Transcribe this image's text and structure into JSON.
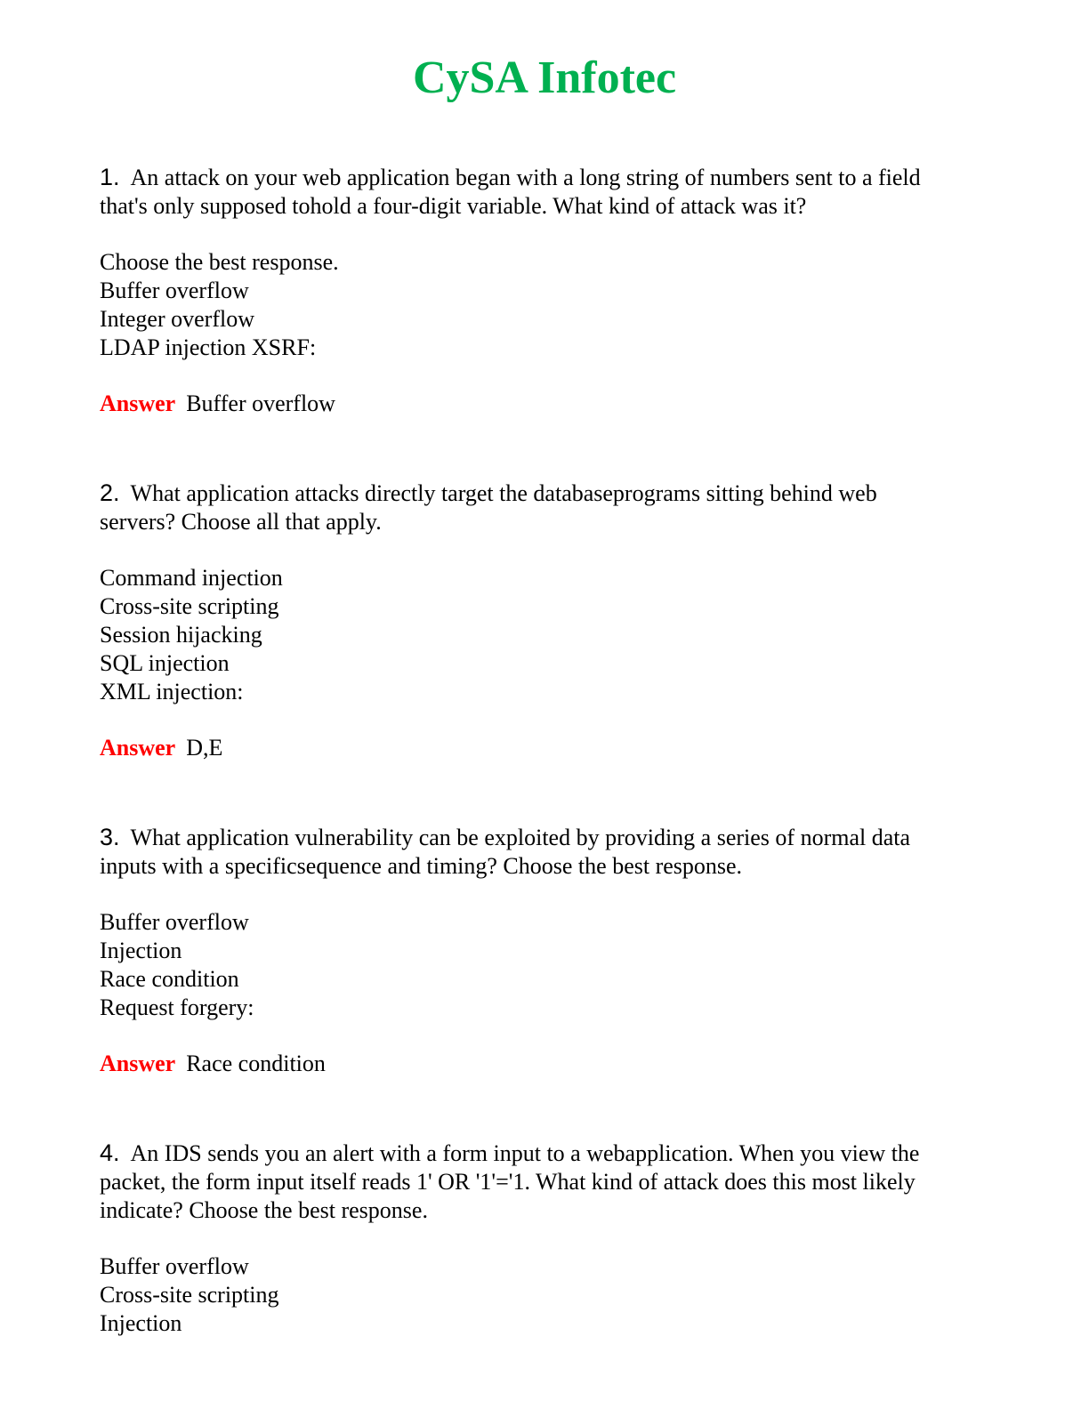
{
  "title": "CySA Infotec",
  "answer_label": "Answer",
  "colors": {
    "title": "#00b050",
    "answer_label": "#ff0000"
  },
  "questions": [
    {
      "number": "1.",
      "prompt": [
        "An attack on your web application began with a long string of numbers sent to a field",
        "that's only supposed tohold a four-digit variable. What kind of attack was it?"
      ],
      "options": [
        "Choose the best response.",
        "Buffer overflow",
        "Integer overflow",
        "LDAP injection XSRF:"
      ],
      "answer": "Buffer overflow"
    },
    {
      "number": "2.",
      "prompt": [
        "What application attacks directly target the databaseprograms sitting behind web",
        "servers? Choose all that apply."
      ],
      "options": [
        "Command injection",
        "Cross-site scripting",
        "Session hijacking",
        "SQL  injection",
        "XML injection:"
      ],
      "answer": "D,E"
    },
    {
      "number": "3.",
      "prompt": [
        "What application vulnerability can be exploited by providing a series of normal data",
        "inputs with a specificsequence and timing? Choose the best response."
      ],
      "options": [
        "Buffer overflow",
        "Injection",
        "Race condition",
        "Request forgery:"
      ],
      "answer": "Race condition"
    },
    {
      "number": "4.",
      "prompt": [
        "An IDS sends you an alert with a form input to a webapplication. When you view the",
        "packet, the form input itself reads 1' OR '1'='1. What kind of attack does this most likely",
        "indicate? Choose the best response."
      ],
      "options": [
        "Buffer overflow",
        "Cross-site scripting",
        "Injection"
      ],
      "answer": null
    }
  ]
}
